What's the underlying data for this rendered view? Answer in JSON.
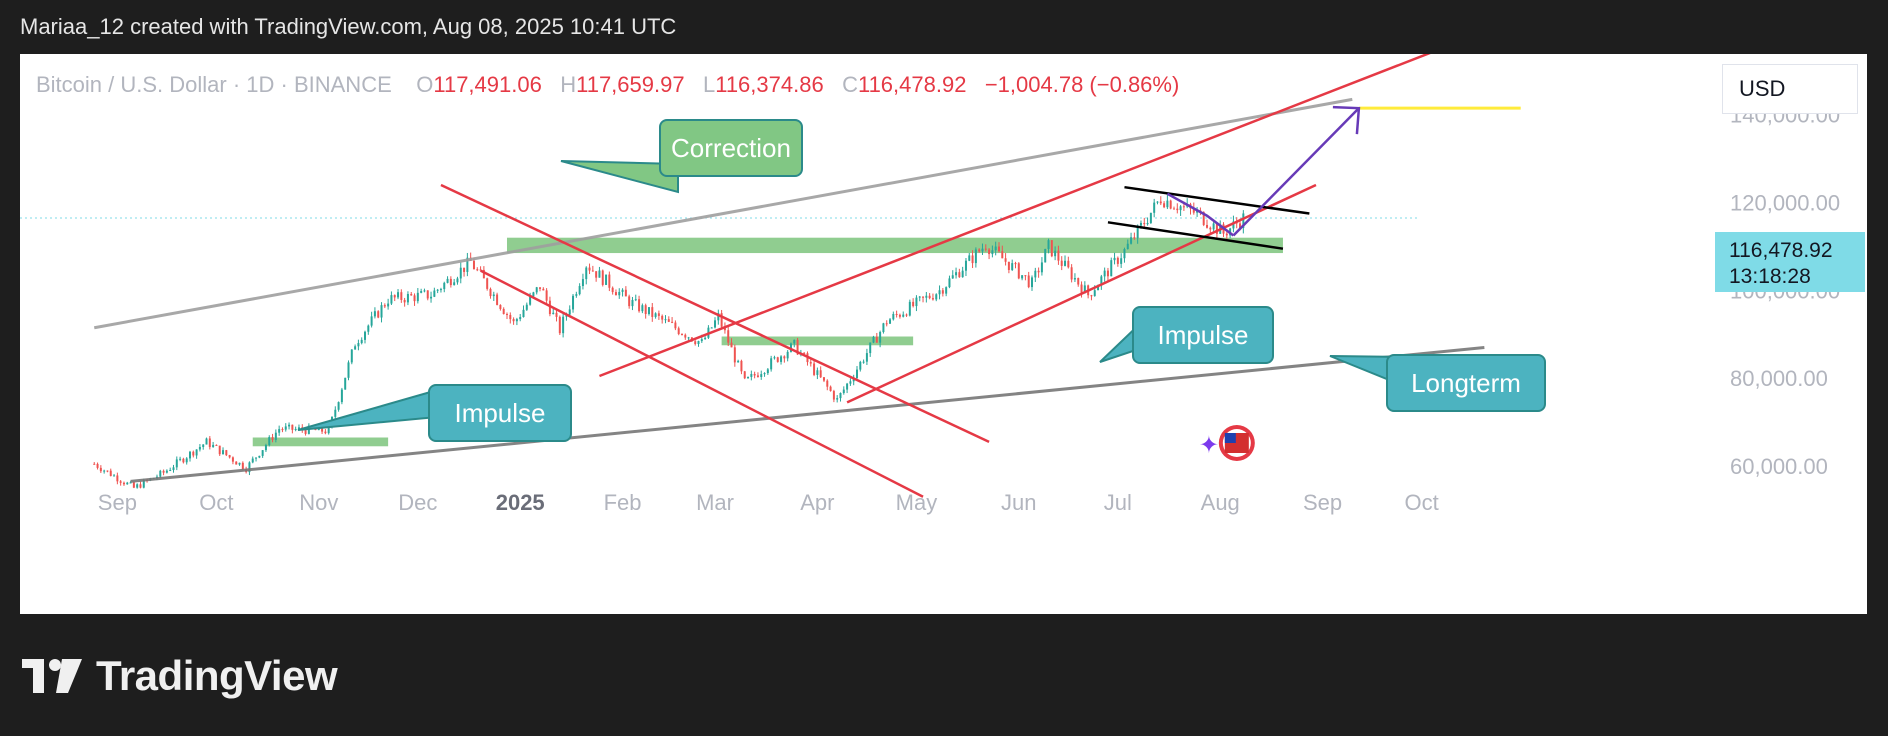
{
  "header": {
    "text": "Mariaa_12 created with TradingView.com, Aug 08, 2025 10:41 UTC"
  },
  "legend": {
    "symbol": "Bitcoin / U.S. Dollar · 1D · BINANCE",
    "open_key": "O",
    "open": "117,491.06",
    "high_key": "H",
    "high": "117,659.97",
    "low_key": "L",
    "low": "116,374.86",
    "close_key": "C",
    "close": "116,478.92",
    "change": "−1,004.78 (−0.86%)"
  },
  "currency": "USD",
  "price_tag": {
    "price": "116,478.92",
    "countdown": "13:18:28"
  },
  "annotations": {
    "correction": "Correction",
    "impulse_1": "Impulse",
    "impulse_2": "Impulse",
    "longterm": "Longterm"
  },
  "footer": {
    "brand": "TradingView"
  },
  "colors": {
    "up": "#26a69a",
    "down": "#ef5350",
    "channel": "#e53945",
    "trend_grey": "#9e9e9e",
    "zone": "#7cc47c",
    "callout_green": "#81c784",
    "callout_teal": "#4cb3c0",
    "arrow": "#673ab7",
    "target": "#ffeb3b"
  },
  "chart_data": {
    "type": "candlestick",
    "title": "Bitcoin / U.S. Dollar · 1D · BINANCE",
    "x_ticks": [
      {
        "label": "Sep",
        "date": "2024-09-01"
      },
      {
        "label": "Oct",
        "date": "2024-10-01"
      },
      {
        "label": "Nov",
        "date": "2024-11-01"
      },
      {
        "label": "Dec",
        "date": "2024-12-01"
      },
      {
        "label": "2025",
        "date": "2025-01-01"
      },
      {
        "label": "Feb",
        "date": "2025-02-01"
      },
      {
        "label": "Mar",
        "date": "2025-03-01"
      },
      {
        "label": "Apr",
        "date": "2025-04-01"
      },
      {
        "label": "May",
        "date": "2025-05-01"
      },
      {
        "label": "Jun",
        "date": "2025-06-01"
      },
      {
        "label": "Jul",
        "date": "2025-07-01"
      },
      {
        "label": "Aug",
        "date": "2025-08-01"
      },
      {
        "label": "Sep",
        "date": "2025-09-01"
      },
      {
        "label": "Oct",
        "date": "2025-10-01"
      }
    ],
    "y_ticks": [
      "60,000.00",
      "80,000.00",
      "100,000.00",
      "120,000.00",
      "140,000.00"
    ],
    "y_tick_values": [
      60000,
      80000,
      100000,
      120000,
      140000
    ],
    "y_range": [
      55000,
      147000
    ],
    "last_price": 116478.92,
    "anchors": [
      {
        "date": "2024-08-25",
        "price": 60500
      },
      {
        "date": "2024-09-06",
        "price": 55000
      },
      {
        "date": "2024-09-15",
        "price": 58500
      },
      {
        "date": "2024-09-28",
        "price": 65500
      },
      {
        "date": "2024-10-10",
        "price": 59500
      },
      {
        "date": "2024-10-20",
        "price": 68500
      },
      {
        "date": "2024-11-04",
        "price": 68000
      },
      {
        "date": "2024-11-12",
        "price": 88000
      },
      {
        "date": "2024-11-22",
        "price": 98000
      },
      {
        "date": "2024-12-05",
        "price": 99000
      },
      {
        "date": "2024-12-17",
        "price": 106500
      },
      {
        "date": "2024-12-30",
        "price": 92500
      },
      {
        "date": "2025-01-07",
        "price": 101000
      },
      {
        "date": "2025-01-13",
        "price": 91000
      },
      {
        "date": "2025-01-21",
        "price": 106000
      },
      {
        "date": "2025-02-03",
        "price": 97500
      },
      {
        "date": "2025-02-25",
        "price": 88000
      },
      {
        "date": "2025-03-02",
        "price": 94000
      },
      {
        "date": "2025-03-10",
        "price": 79000
      },
      {
        "date": "2025-03-25",
        "price": 87500
      },
      {
        "date": "2025-04-07",
        "price": 75000
      },
      {
        "date": "2025-04-22",
        "price": 93000
      },
      {
        "date": "2025-05-08",
        "price": 100000
      },
      {
        "date": "2025-05-22",
        "price": 110500
      },
      {
        "date": "2025-06-05",
        "price": 101500
      },
      {
        "date": "2025-06-10",
        "price": 110000
      },
      {
        "date": "2025-06-22",
        "price": 99000
      },
      {
        "date": "2025-07-03",
        "price": 109000
      },
      {
        "date": "2025-07-14",
        "price": 121000
      },
      {
        "date": "2025-07-25",
        "price": 117500
      },
      {
        "date": "2025-08-02",
        "price": 113000
      },
      {
        "date": "2025-08-08",
        "price": 116478
      }
    ],
    "zones": [
      {
        "from": "2024-10-12",
        "to": "2024-11-22",
        "low": 64500,
        "high": 66500
      },
      {
        "from": "2024-12-28",
        "to": "2025-08-20",
        "low": 108500,
        "high": 112000
      },
      {
        "from": "2025-03-03",
        "to": "2025-04-30",
        "low": 87500,
        "high": 89500
      }
    ],
    "lines": [
      {
        "role": "grey-upper",
        "color": "#9e9e9e",
        "points": [
          {
            "date": "2024-08-25",
            "price": 91500
          },
          {
            "date": "2025-09-10",
            "price": 143500
          }
        ]
      },
      {
        "role": "grey-lower",
        "color": "#777777",
        "points": [
          {
            "date": "2024-09-05",
            "price": 56500
          },
          {
            "date": "2025-10-20",
            "price": 87000
          }
        ]
      },
      {
        "role": "red-down-upper",
        "color": "#e53945",
        "points": [
          {
            "date": "2024-12-08",
            "price": 124000
          },
          {
            "date": "2025-05-23",
            "price": 65500
          }
        ]
      },
      {
        "role": "red-down-lower",
        "color": "#e53945",
        "points": [
          {
            "date": "2024-12-20",
            "price": 104500
          },
          {
            "date": "2025-05-03",
            "price": 53000
          }
        ]
      },
      {
        "role": "red-up-upper",
        "color": "#e53945",
        "points": [
          {
            "date": "2025-01-25",
            "price": 80500
          },
          {
            "date": "2025-10-05",
            "price": 154500
          }
        ]
      },
      {
        "role": "red-up-lower",
        "color": "#e53945",
        "points": [
          {
            "date": "2025-04-10",
            "price": 74500
          },
          {
            "date": "2025-08-30",
            "price": 124000
          }
        ]
      },
      {
        "role": "flag-upper",
        "color": "#000000",
        "points": [
          {
            "date": "2025-07-03",
            "price": 123500
          },
          {
            "date": "2025-08-28",
            "price": 117500
          }
        ]
      },
      {
        "role": "flag-lower",
        "color": "#000000",
        "points": [
          {
            "date": "2025-06-28",
            "price": 115500
          },
          {
            "date": "2025-08-20",
            "price": 109500
          }
        ]
      },
      {
        "role": "target",
        "color": "#ffeb3b",
        "points": [
          {
            "date": "2025-09-12",
            "price": 141500
          },
          {
            "date": "2025-10-31",
            "price": 141500
          }
        ]
      },
      {
        "role": "correction-path",
        "color": "#673ab7",
        "points": [
          {
            "date": "2025-07-16",
            "price": 122000
          },
          {
            "date": "2025-07-28",
            "price": 117000
          },
          {
            "date": "2025-08-05",
            "price": 112500
          }
        ]
      },
      {
        "role": "projection-arrow",
        "color": "#673ab7",
        "points": [
          {
            "date": "2025-08-05",
            "price": 112500
          },
          {
            "date": "2025-09-12",
            "price": 141500
          }
        ]
      }
    ]
  }
}
